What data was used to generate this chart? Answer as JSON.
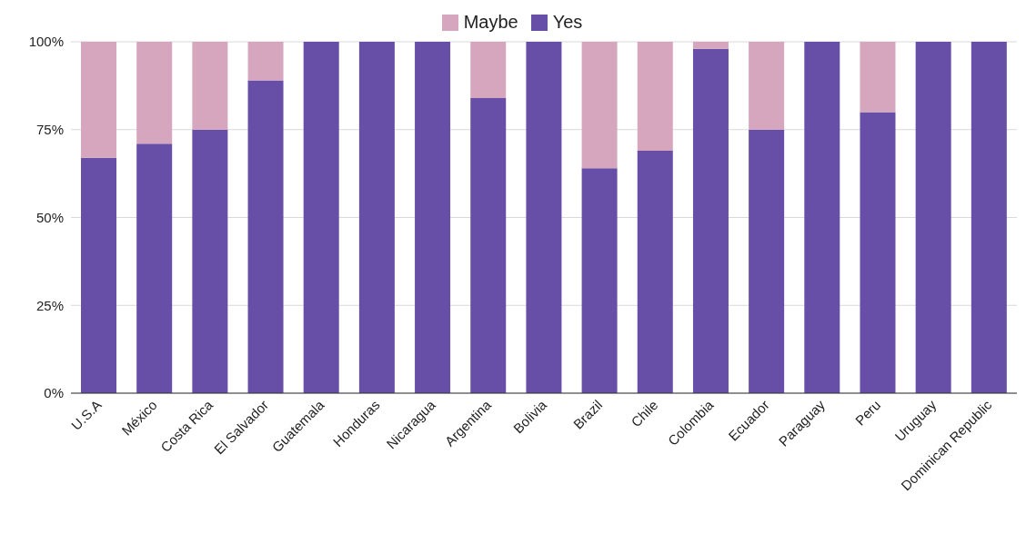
{
  "chart_data": {
    "type": "bar",
    "stacked": true,
    "categories": [
      "U.S.A",
      "México",
      "Costa Rica",
      "El Salvador",
      "Guatemala",
      "Honduras",
      "Nicaragua",
      "Argentina",
      "Bolivia",
      "Brazil",
      "Chile",
      "Colombia",
      "Ecuador",
      "Paraguay",
      "Peru",
      "Uruguay",
      "Dominican Republic"
    ],
    "series": [
      {
        "name": "Yes",
        "color": "#674ea7",
        "values": [
          67,
          71,
          75,
          89,
          100,
          100,
          100,
          84,
          100,
          64,
          69,
          98,
          75,
          100,
          80,
          100,
          100
        ]
      },
      {
        "name": "Maybe",
        "color": "#d5a6bd",
        "values": [
          33,
          29,
          25,
          11,
          0,
          0,
          0,
          16,
          0,
          36,
          31,
          2,
          25,
          0,
          20,
          0,
          0
        ]
      }
    ],
    "ylim": [
      0,
      100
    ],
    "yticks": [
      {
        "value": 0,
        "label": "0%"
      },
      {
        "value": 25,
        "label": "25%"
      },
      {
        "value": 50,
        "label": "50%"
      },
      {
        "value": 75,
        "label": "75%"
      },
      {
        "value": 100,
        "label": "100%"
      }
    ],
    "grid": "y",
    "legend": "top"
  }
}
